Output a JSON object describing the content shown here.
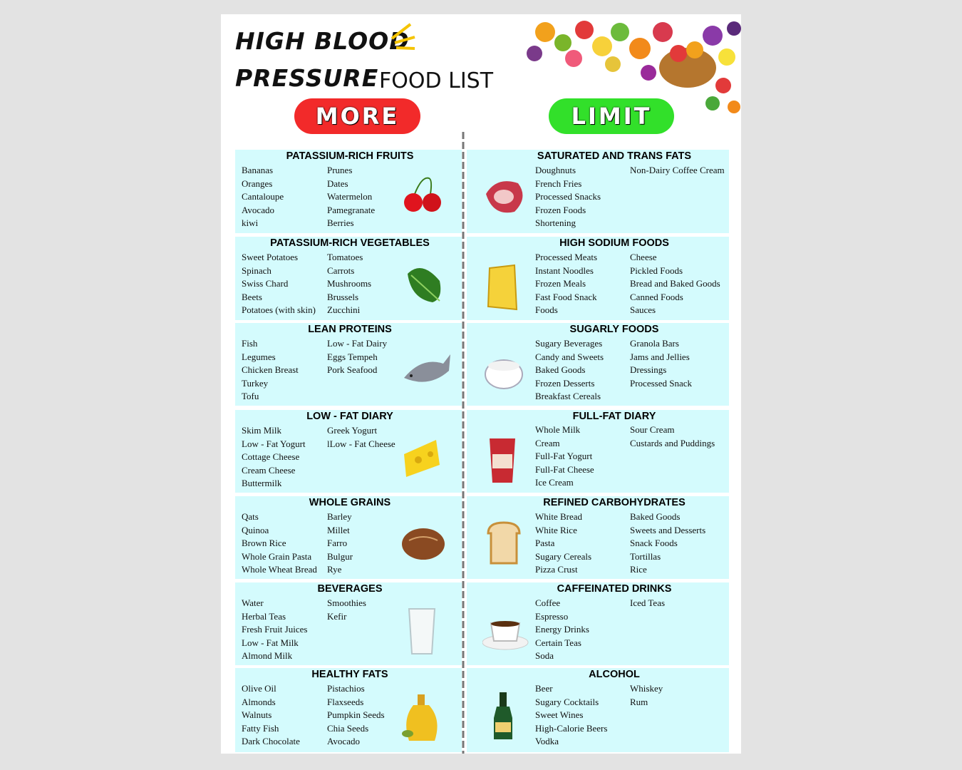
{
  "header": {
    "title_line1": "HIGH BLOOD",
    "title_line2": "PRESSURE",
    "title_suffix": "FOOD LIST"
  },
  "more_label": "MORE",
  "limit_label": "LIMIT",
  "more_sections": [
    {
      "title": "PATASSIUM-RICH FRUITS",
      "col1": [
        "Bananas",
        "Oranges",
        "Cantaloupe",
        "Avocado",
        "kiwi"
      ],
      "col2": [
        "Prunes",
        "Dates",
        "Watermelon",
        "Pamegranate",
        "Berries"
      ]
    },
    {
      "title": "PATASSIUM-RICH VEGETABLES",
      "col1": [
        "Sweet Potatoes",
        "Spinach",
        "Swiss Chard",
        "Beets",
        "Potatoes (with skin)"
      ],
      "col2": [
        "Tomatoes",
        "Carrots",
        "Mushrooms",
        "Brussels",
        "Zucchini"
      ]
    },
    {
      "title": "LEAN PROTEINS",
      "col1": [
        "Fish",
        "Legumes",
        "Chicken Breast",
        "Turkey",
        "Tofu"
      ],
      "col2": [
        "Low - Fat Dairy",
        "Eggs Tempeh",
        "Pork Seafood"
      ]
    },
    {
      "title": "LOW - FAT DIARY",
      "col1": [
        "Skim Milk",
        "Low - Fat Yogurt",
        "Cottage Cheese",
        "Cream Cheese",
        "Buttermilk"
      ],
      "col2": [
        "Greek Yogurt",
        "lLow - Fat Cheese"
      ]
    },
    {
      "title": "WHOLE GRAINS",
      "col1": [
        "Qats",
        "Quinoa",
        "Brown Rice",
        "Whole Grain Pasta",
        "Whole Wheat Bread"
      ],
      "col2": [
        "Barley",
        "Millet",
        "Farro",
        "Bulgur",
        "Rye"
      ]
    },
    {
      "title": "BEVERAGES",
      "col1": [
        "Water",
        "Herbal Teas",
        "Fresh Fruit Juices",
        "Low - Fat Milk",
        "Almond Milk"
      ],
      "col2": [
        "Smoothies",
        "Kefir"
      ]
    },
    {
      "title": "HEALTHY FATS",
      "col1": [
        "Olive Oil",
        "Almonds",
        "Walnuts",
        "Fatty Fish",
        "Dark Chocolate"
      ],
      "col2": [
        "Pistachios",
        "Flaxseeds",
        "Pumpkin Seeds",
        "Chia Seeds",
        "Avocado"
      ]
    }
  ],
  "limit_sections": [
    {
      "title": "SATURATED AND TRANS FATS",
      "col1": [
        "Doughnuts",
        "French Fries",
        "Processed Snacks",
        "Frozen Foods",
        "Shortening"
      ],
      "col2": [
        "Non-Dairy Coffee Cream"
      ]
    },
    {
      "title": "HIGH SODIUM FOODS",
      "col1": [
        "Processed Meats",
        "Instant Noodles",
        "Frozen Meals",
        "Fast Food Snack",
        "Foods"
      ],
      "col2": [
        "Cheese",
        "Pickled Foods",
        "Bread and Baked Goods",
        "Canned Foods",
        "Sauces"
      ]
    },
    {
      "title": "SUGARLY FOODS",
      "col1": [
        "Sugary Beverages",
        "Candy and Sweets",
        "Baked Goods",
        "Frozen Desserts",
        "Breakfast Cereals"
      ],
      "col2": [
        "Granola Bars",
        "Jams and Jellies",
        "Dressings",
        "Processed Snack"
      ]
    },
    {
      "title": "FULL-FAT DIARY",
      "col1": [
        "Whole Milk",
        "Cream",
        "Full-Fat Yogurt",
        "Full-Fat Cheese",
        "Ice Cream"
      ],
      "col2": [
        "Sour Cream",
        "Custards and Puddings"
      ]
    },
    {
      "title": "REFINED CARBOHYDRATES",
      "col1": [
        "White Bread",
        "White Rice",
        "Pasta",
        "Sugary Cereals",
        "Pizza Crust"
      ],
      "col2": [
        "Baked Goods",
        "Sweets and Desserts",
        "Snack Foods",
        "Tortillas",
        "Rice"
      ]
    },
    {
      "title": "CAFFEINATED DRINKS",
      "col1": [
        "Coffee",
        "Espresso",
        "Energy Drinks",
        "Certain Teas",
        "Soda"
      ],
      "col2": [
        "Iced Teas"
      ]
    },
    {
      "title": "ALCOHOL",
      "col1": [
        "Beer",
        "Sugary Cocktails",
        "Sweet Wines",
        "High-Calorie Beers",
        "Vodka"
      ],
      "col2": [
        "Whiskey",
        "Rum"
      ]
    }
  ]
}
